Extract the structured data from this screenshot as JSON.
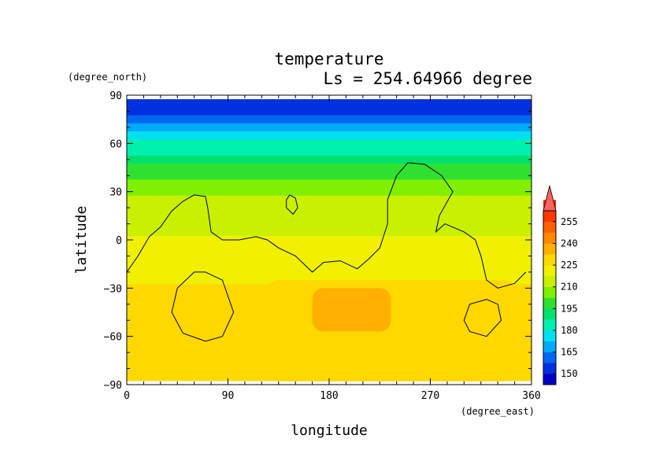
{
  "chart_data": {
    "type": "heatmap",
    "title": "temperature",
    "subtitle": "Ls = 254.64966 degree",
    "xlabel": "longitude",
    "ylabel": "latitude",
    "xunit": "(degree_east)",
    "yunit": "(degree_north)",
    "xlim": [
      0,
      360
    ],
    "ylim": [
      -90,
      90
    ],
    "x_ticks": [
      "0",
      "90",
      "180",
      "270",
      "360"
    ],
    "y_ticks": [
      "90",
      "60",
      "30",
      "0",
      "−30",
      "−60",
      "−90"
    ],
    "colorbar": {
      "levels": [
        150,
        165,
        180,
        195,
        210,
        225,
        240,
        255
      ],
      "tick_labels": [
        "150",
        "165",
        "180",
        "195",
        "210",
        "225",
        "240",
        "255"
      ],
      "min": 142.5,
      "max": 262.5,
      "extend": "max",
      "colors": [
        "#0000c8",
        "#0030e0",
        "#0068f0",
        "#00a8f8",
        "#00e0f0",
        "#00f0b0",
        "#00e070",
        "#30e030",
        "#80f000",
        "#c8f000",
        "#f0f000",
        "#ffd800",
        "#ffb000",
        "#ff8800",
        "#ff6000",
        "#ff3800",
        "#ff2000",
        "#ff6060"
      ]
    },
    "lat_profile": [
      [
        85,
        150
      ],
      [
        80,
        152
      ],
      [
        75,
        158
      ],
      [
        70,
        165
      ],
      [
        65,
        173
      ],
      [
        60,
        180
      ],
      [
        55,
        186
      ],
      [
        50,
        191
      ],
      [
        45,
        196
      ],
      [
        40,
        201
      ],
      [
        35,
        205
      ],
      [
        30,
        208
      ],
      [
        25,
        211
      ],
      [
        20,
        213
      ],
      [
        15,
        215
      ],
      [
        10,
        216
      ],
      [
        5,
        217
      ],
      [
        0,
        218
      ],
      [
        -5,
        219
      ],
      [
        -10,
        221
      ],
      [
        -15,
        222
      ],
      [
        -20,
        223
      ],
      [
        -25,
        224
      ],
      [
        -30,
        226
      ],
      [
        -35,
        227
      ],
      [
        -40,
        228
      ],
      [
        -45,
        228
      ],
      [
        -50,
        228
      ],
      [
        -55,
        228
      ],
      [
        -60,
        228
      ],
      [
        -65,
        228
      ],
      [
        -70,
        229
      ],
      [
        -75,
        229
      ],
      [
        -80,
        228
      ],
      [
        -85,
        226
      ]
    ],
    "warm_regions": [
      {
        "lon": [
          165,
          235
        ],
        "lat": [
          -57,
          -30
        ],
        "value": 238
      },
      {
        "lon": [
          125,
          345
        ],
        "lat": [
          -88,
          -25
        ],
        "value": 232
      }
    ],
    "contours": [
      [
        [
          0,
          -20
        ],
        [
          10,
          -10
        ],
        [
          20,
          2
        ],
        [
          30,
          8
        ],
        [
          40,
          18
        ],
        [
          50,
          24
        ],
        [
          60,
          28
        ],
        [
          70,
          27
        ],
        [
          72,
          20
        ],
        [
          75,
          5
        ],
        [
          85,
          0
        ],
        [
          100,
          0
        ],
        [
          115,
          2
        ],
        [
          125,
          0
        ],
        [
          135,
          -5
        ],
        [
          150,
          -10
        ],
        [
          165,
          -20
        ],
        [
          175,
          -14
        ],
        [
          190,
          -13
        ],
        [
          205,
          -18
        ],
        [
          215,
          -12
        ],
        [
          225,
          -5
        ],
        [
          232,
          10
        ],
        [
          232,
          25
        ],
        [
          240,
          40
        ],
        [
          250,
          48
        ],
        [
          265,
          47
        ],
        [
          280,
          40
        ],
        [
          290,
          30
        ],
        [
          278,
          15
        ],
        [
          275,
          5
        ],
        [
          283,
          10
        ],
        [
          300,
          5
        ],
        [
          310,
          0
        ],
        [
          315,
          -10
        ],
        [
          320,
          -25
        ],
        [
          330,
          -30
        ],
        [
          345,
          -27
        ],
        [
          355,
          -20
        ]
      ],
      [
        [
          145,
          28
        ],
        [
          150,
          26
        ],
        [
          152,
          20
        ],
        [
          148,
          16
        ],
        [
          142,
          20
        ],
        [
          142,
          25
        ],
        [
          145,
          28
        ]
      ],
      [
        [
          70,
          -20
        ],
        [
          85,
          -25
        ],
        [
          95,
          -45
        ],
        [
          85,
          -60
        ],
        [
          70,
          -63
        ],
        [
          50,
          -58
        ],
        [
          40,
          -45
        ],
        [
          45,
          -30
        ],
        [
          60,
          -20
        ],
        [
          70,
          -20
        ]
      ],
      [
        [
          320,
          -37
        ],
        [
          330,
          -40
        ],
        [
          333,
          -50
        ],
        [
          320,
          -60
        ],
        [
          305,
          -57
        ],
        [
          300,
          -50
        ],
        [
          305,
          -40
        ],
        [
          320,
          -37
        ]
      ]
    ]
  }
}
